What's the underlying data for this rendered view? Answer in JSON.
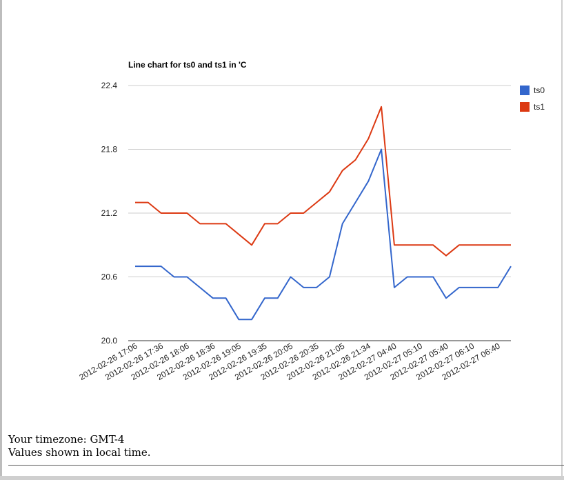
{
  "chart_data": {
    "type": "line",
    "title": "Line chart for ts0 and ts1 in 'C",
    "xlabel": "",
    "ylabel": "",
    "ylim": [
      20.0,
      22.4
    ],
    "yticks": [
      "22.4",
      "21.8",
      "21.2",
      "20.6",
      "20.0"
    ],
    "grid": true,
    "legend_position": "top-right",
    "x": [
      "2012-02-26 17:06",
      "2012-02-26 17:21",
      "2012-02-26 17:36",
      "2012-02-26 17:51",
      "2012-02-26 18:06",
      "2012-02-26 18:21",
      "2012-02-26 18:36",
      "2012-02-26 18:51",
      "2012-02-26 19:05",
      "2012-02-26 19:20",
      "2012-02-26 19:35",
      "2012-02-26 19:50",
      "2012-02-26 20:05",
      "2012-02-26 20:20",
      "2012-02-26 20:35",
      "2012-02-26 20:50",
      "2012-02-26 21:05",
      "2012-02-26 21:20",
      "2012-02-26 21:34",
      "2012-02-26 21:49",
      "2012-02-27 04:40",
      "2012-02-27 04:55",
      "2012-02-27 05:10",
      "2012-02-27 05:25",
      "2012-02-27 05:40",
      "2012-02-27 05:55",
      "2012-02-27 06:10",
      "2012-02-27 06:25",
      "2012-02-27 06:40",
      "2012-02-27 06:55"
    ],
    "x_tick_labels": [
      "2012-02-26 17:06",
      "2012-02-26 17:36",
      "2012-02-26 18:06",
      "2012-02-26 18:36",
      "2012-02-26 19:05",
      "2012-02-26 19:35",
      "2012-02-26 20:05",
      "2012-02-26 20:35",
      "2012-02-26 21:05",
      "2012-02-26 21:34",
      "2012-02-27 04:40",
      "2012-02-27 05:10",
      "2012-02-27 05:40",
      "2012-02-27 06:10",
      "2012-02-27 06:40"
    ],
    "series": [
      {
        "name": "ts0",
        "color": "#3366cc",
        "values": [
          20.7,
          20.7,
          20.7,
          20.6,
          20.6,
          20.5,
          20.4,
          20.4,
          20.2,
          20.2,
          20.4,
          20.4,
          20.6,
          20.5,
          20.5,
          20.6,
          21.1,
          21.3,
          21.5,
          21.8,
          20.5,
          20.6,
          20.6,
          20.6,
          20.4,
          20.5,
          20.5,
          20.5,
          20.5,
          20.7
        ]
      },
      {
        "name": "ts1",
        "color": "#dc3912",
        "values": [
          21.3,
          21.3,
          21.2,
          21.2,
          21.2,
          21.1,
          21.1,
          21.1,
          21.0,
          20.9,
          21.1,
          21.1,
          21.2,
          21.2,
          21.3,
          21.4,
          21.6,
          21.7,
          21.9,
          22.2,
          20.9,
          20.9,
          20.9,
          20.9,
          20.8,
          20.9,
          20.9,
          20.9,
          20.9,
          20.9
        ]
      }
    ]
  },
  "footer": {
    "timezone": "Your timezone: GMT-4",
    "note": "Values shown in local time."
  },
  "colors": {
    "grid": "#cccccc",
    "axis": "#333333",
    "text": "#222222"
  }
}
